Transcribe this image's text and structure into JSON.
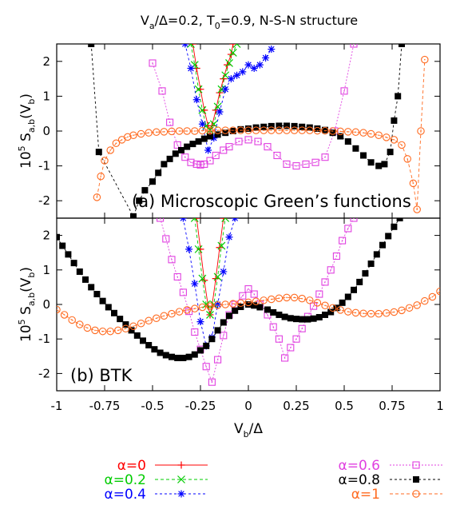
{
  "title": "V_a/Δ=0.2, T_0=0.9, N-S-N structure",
  "title_parts": {
    "v": "V",
    "a_sub": "a",
    "rest1": "/Δ=0.2, T",
    "t_sub": "0",
    "rest2": "=0.9, N-S-N structure"
  },
  "xlabel_parts": {
    "v": "V",
    "b_sub": "b",
    "rest": "/Δ"
  },
  "ylabel_parts": {
    "pre": "10",
    "exp": "5",
    "mid": " S",
    "ab_sub": "a,b",
    "open": "(V",
    "b_sub": "b",
    "close": ")"
  },
  "panel_a_label": "(a) Microscopic Green’s functions",
  "panel_b_label": "(b) BTK",
  "colors": {
    "a0": "#ff0000",
    "a02": "#00cc00",
    "a04": "#0000ff",
    "a06": "#e040e0",
    "a08": "#000000",
    "a1": "#ff6a1f"
  },
  "chart_data": [
    {
      "type": "line",
      "panel": "a",
      "xlim": [
        -1,
        1
      ],
      "ylim": [
        -2.5,
        2.5
      ],
      "xticks": [],
      "yticks": [
        -2,
        -1,
        0,
        1,
        2
      ],
      "series": [
        {
          "name": "α=0",
          "color": "#ff0000",
          "marker": "plus",
          "dash": "none",
          "x": [
            -0.29,
            -0.27,
            -0.25,
            -0.23,
            -0.21,
            -0.2,
            -0.19,
            -0.17,
            -0.15,
            -0.13,
            -0.11,
            -0.09,
            -0.08
          ],
          "y": [
            2.5,
            1.8,
            1.2,
            0.6,
            0.15,
            0.0,
            0.15,
            0.6,
            1.1,
            1.5,
            1.9,
            2.2,
            2.5
          ]
        },
        {
          "name": "α=0.2",
          "color": "#00cc00",
          "marker": "x",
          "dash": "4,3",
          "x": [
            -0.3,
            -0.28,
            -0.26,
            -0.24,
            -0.22,
            -0.2,
            -0.18,
            -0.16,
            -0.14,
            -0.12,
            -0.1,
            -0.08,
            -0.06
          ],
          "y": [
            2.5,
            1.9,
            1.2,
            0.6,
            0.15,
            0.02,
            0.2,
            0.7,
            1.2,
            1.6,
            1.95,
            2.25,
            2.5
          ]
        },
        {
          "name": "α=0.4",
          "color": "#0000ff",
          "marker": "star",
          "dash": "3,3",
          "x": [
            -0.33,
            -0.3,
            -0.27,
            -0.24,
            -0.21,
            -0.18,
            -0.15,
            -0.12,
            -0.09,
            -0.06,
            -0.03,
            0.0,
            0.03,
            0.06,
            0.09,
            0.12
          ],
          "y": [
            2.5,
            1.8,
            0.9,
            0.2,
            -0.55,
            -0.2,
            0.55,
            1.2,
            1.5,
            1.6,
            1.7,
            1.9,
            1.8,
            1.9,
            2.1,
            2.35
          ]
        },
        {
          "name": "α=0.6",
          "color": "#e040e0",
          "marker": "square",
          "dash": "2,2",
          "x": [
            -0.5,
            -0.45,
            -0.41,
            -0.37,
            -0.33,
            -0.3,
            -0.27,
            -0.25,
            -0.23,
            -0.2,
            -0.17,
            -0.13,
            -0.1,
            -0.05,
            0.0,
            0.05,
            0.1,
            0.15,
            0.2,
            0.25,
            0.3,
            0.35,
            0.4,
            0.45,
            0.5,
            0.55
          ],
          "y": [
            1.95,
            1.15,
            0.25,
            -0.4,
            -0.75,
            -0.9,
            -0.95,
            -0.97,
            -0.95,
            -0.85,
            -0.7,
            -0.55,
            -0.45,
            -0.3,
            -0.25,
            -0.3,
            -0.45,
            -0.7,
            -0.95,
            -1.0,
            -0.95,
            -0.9,
            -0.75,
            0.0,
            1.15,
            2.5
          ]
        },
        {
          "name": "α=0.8",
          "color": "#000000",
          "marker": "filledsquare",
          "dash": "3,3",
          "x": [
            -0.82,
            -0.78,
            -0.6,
            -0.57,
            -0.54,
            -0.5,
            -0.47,
            -0.44,
            -0.41,
            -0.38,
            -0.35,
            -0.32,
            -0.29,
            -0.26,
            -0.23,
            -0.2,
            -0.16,
            -0.12,
            -0.08,
            -0.04,
            0.0,
            0.04,
            0.08,
            0.12,
            0.16,
            0.2,
            0.24,
            0.28,
            0.32,
            0.36,
            0.4,
            0.44,
            0.48,
            0.52,
            0.56,
            0.6,
            0.64,
            0.68,
            0.71,
            0.74,
            0.76,
            0.78,
            0.8
          ],
          "y": [
            2.5,
            -0.6,
            -2.45,
            -2.0,
            -1.7,
            -1.45,
            -1.2,
            -0.95,
            -0.8,
            -0.65,
            -0.55,
            -0.45,
            -0.37,
            -0.3,
            -0.22,
            -0.15,
            -0.1,
            -0.05,
            0.0,
            0.05,
            0.07,
            0.1,
            0.12,
            0.14,
            0.15,
            0.15,
            0.14,
            0.12,
            0.1,
            0.07,
            0.03,
            -0.05,
            -0.15,
            -0.3,
            -0.5,
            -0.7,
            -0.9,
            -1.0,
            -0.95,
            -0.6,
            0.3,
            1.0,
            2.5
          ]
        },
        {
          "name": "α=1",
          "color": "#ff6a1f",
          "marker": "circle",
          "dash": "4,3",
          "x": [
            -0.79,
            -0.77,
            -0.75,
            -0.72,
            -0.69,
            -0.66,
            -0.63,
            -0.6,
            -0.56,
            -0.52,
            -0.48,
            -0.44,
            -0.4,
            -0.36,
            -0.32,
            -0.28,
            -0.24,
            -0.2,
            -0.16,
            -0.12,
            -0.08,
            -0.04,
            0.0,
            0.04,
            0.08,
            0.12,
            0.16,
            0.2,
            0.24,
            0.28,
            0.32,
            0.36,
            0.4,
            0.44,
            0.48,
            0.52,
            0.56,
            0.6,
            0.64,
            0.68,
            0.72,
            0.76,
            0.8,
            0.83,
            0.86,
            0.88,
            0.9,
            0.92
          ],
          "y": [
            -1.9,
            -1.3,
            -0.85,
            -0.55,
            -0.35,
            -0.25,
            -0.17,
            -0.12,
            -0.08,
            -0.05,
            -0.03,
            -0.02,
            -0.01,
            0.0,
            0.0,
            0.0,
            0.01,
            0.01,
            0.02,
            0.02,
            0.02,
            0.02,
            0.02,
            0.02,
            0.02,
            0.02,
            0.02,
            0.02,
            0.02,
            0.02,
            0.02,
            0.01,
            0.01,
            0.0,
            -0.01,
            -0.02,
            -0.03,
            -0.05,
            -0.08,
            -0.12,
            -0.18,
            -0.25,
            -0.4,
            -0.8,
            -1.5,
            -2.25,
            0.0,
            2.05
          ]
        }
      ]
    },
    {
      "type": "line",
      "panel": "b",
      "xlim": [
        -1,
        1
      ],
      "ylim": [
        -2.5,
        2.5
      ],
      "xticks": [
        "-1",
        "-0.75",
        "-0.5",
        "-0.25",
        "0",
        "0.25",
        "0.5",
        "0.75",
        "1"
      ],
      "yticks": [
        -2,
        -1,
        0,
        1,
        2
      ],
      "series": [
        {
          "name": "α=0",
          "color": "#ff0000",
          "marker": "plus",
          "dash": "none",
          "x": [
            -0.27,
            -0.25,
            -0.23,
            -0.21,
            -0.2,
            -0.19,
            -0.17,
            -0.15,
            -0.13
          ],
          "y": [
            2.5,
            1.6,
            0.7,
            -0.05,
            -0.3,
            -0.05,
            0.75,
            1.65,
            2.5
          ]
        },
        {
          "name": "α=0.2",
          "color": "#00cc00",
          "marker": "x",
          "dash": "4,3",
          "x": [
            -0.28,
            -0.26,
            -0.24,
            -0.22,
            -0.2,
            -0.18,
            -0.16,
            -0.14,
            -0.12
          ],
          "y": [
            2.5,
            1.6,
            0.75,
            0.0,
            -0.3,
            0.0,
            0.8,
            1.7,
            2.5
          ]
        },
        {
          "name": "α=0.4",
          "color": "#0000ff",
          "marker": "star",
          "dash": "3,3",
          "x": [
            -0.34,
            -0.31,
            -0.28,
            -0.25,
            -0.22,
            -0.19,
            -0.16,
            -0.13,
            -0.1,
            -0.07
          ],
          "y": [
            2.5,
            1.6,
            0.6,
            -0.5,
            -1.2,
            -0.95,
            0.0,
            0.95,
            1.95,
            2.5
          ]
        },
        {
          "name": "α=0.6",
          "color": "#e040e0",
          "marker": "square",
          "dash": "2,2",
          "x": [
            -0.46,
            -0.43,
            -0.4,
            -0.37,
            -0.34,
            -0.31,
            -0.28,
            -0.25,
            -0.22,
            -0.19,
            -0.16,
            -0.13,
            -0.1,
            -0.07,
            -0.03,
            0.0,
            0.03,
            0.06,
            0.1,
            0.13,
            0.16,
            0.19,
            0.22,
            0.25,
            0.28,
            0.31,
            0.34,
            0.37,
            0.4,
            0.43,
            0.46,
            0.49,
            0.52,
            0.55
          ],
          "y": [
            2.5,
            1.9,
            1.3,
            0.8,
            0.35,
            -0.2,
            -0.8,
            -1.3,
            -1.8,
            -2.25,
            -1.6,
            -0.9,
            -0.3,
            0.0,
            0.25,
            0.45,
            0.3,
            0.0,
            -0.3,
            -0.65,
            -1.0,
            -1.55,
            -1.25,
            -1.0,
            -0.7,
            -0.35,
            -0.05,
            0.3,
            0.65,
            1.0,
            1.4,
            1.85,
            2.2,
            2.5
          ]
        },
        {
          "name": "α=0.8",
          "color": "#000000",
          "marker": "filledsquare",
          "dash": "3,3",
          "x": [
            -1.0,
            -0.97,
            -0.94,
            -0.91,
            -0.88,
            -0.85,
            -0.82,
            -0.79,
            -0.76,
            -0.73,
            -0.7,
            -0.67,
            -0.64,
            -0.61,
            -0.58,
            -0.55,
            -0.52,
            -0.49,
            -0.46,
            -0.43,
            -0.4,
            -0.37,
            -0.34,
            -0.31,
            -0.28,
            -0.25,
            -0.22,
            -0.19,
            -0.16,
            -0.13,
            -0.1,
            -0.07,
            -0.04,
            0.0,
            0.03,
            0.06,
            0.1,
            0.13,
            0.16,
            0.19,
            0.22,
            0.25,
            0.28,
            0.31,
            0.34,
            0.37,
            0.4,
            0.43,
            0.46,
            0.49,
            0.52,
            0.55,
            0.58,
            0.61,
            0.64,
            0.67,
            0.7,
            0.73,
            0.76,
            0.79,
            0.82
          ],
          "y": [
            1.95,
            1.7,
            1.45,
            1.2,
            0.95,
            0.72,
            0.5,
            0.3,
            0.1,
            -0.08,
            -0.25,
            -0.42,
            -0.58,
            -0.75,
            -0.9,
            -1.05,
            -1.18,
            -1.3,
            -1.4,
            -1.47,
            -1.52,
            -1.55,
            -1.55,
            -1.52,
            -1.45,
            -1.33,
            -1.2,
            -1.0,
            -0.75,
            -0.52,
            -0.33,
            -0.18,
            -0.07,
            0.0,
            -0.03,
            -0.08,
            -0.15,
            -0.23,
            -0.3,
            -0.36,
            -0.4,
            -0.42,
            -0.43,
            -0.43,
            -0.41,
            -0.37,
            -0.3,
            -0.22,
            -0.1,
            0.05,
            0.22,
            0.42,
            0.65,
            0.9,
            1.18,
            1.45,
            1.72,
            1.98,
            2.25,
            2.5,
            2.75
          ]
        },
        {
          "name": "α=1",
          "color": "#ff6a1f",
          "marker": "circle",
          "dash": "4,3",
          "x": [
            -1.0,
            -0.96,
            -0.92,
            -0.88,
            -0.84,
            -0.8,
            -0.76,
            -0.72,
            -0.68,
            -0.64,
            -0.6,
            -0.56,
            -0.52,
            -0.48,
            -0.44,
            -0.4,
            -0.36,
            -0.32,
            -0.28,
            -0.24,
            -0.2,
            -0.16,
            -0.12,
            -0.08,
            -0.04,
            0.0,
            0.04,
            0.08,
            0.12,
            0.16,
            0.2,
            0.24,
            0.28,
            0.32,
            0.36,
            0.4,
            0.44,
            0.48,
            0.52,
            0.56,
            0.6,
            0.64,
            0.68,
            0.72,
            0.76,
            0.8,
            0.84,
            0.88,
            0.92,
            0.96,
            1.0
          ],
          "y": [
            -0.15,
            -0.3,
            -0.45,
            -0.58,
            -0.68,
            -0.75,
            -0.78,
            -0.78,
            -0.75,
            -0.7,
            -0.63,
            -0.55,
            -0.47,
            -0.4,
            -0.33,
            -0.27,
            -0.21,
            -0.16,
            -0.12,
            -0.08,
            -0.05,
            -0.02,
            0.0,
            0.02,
            0.04,
            0.06,
            0.09,
            0.12,
            0.15,
            0.18,
            0.2,
            0.2,
            0.17,
            0.12,
            0.05,
            -0.03,
            -0.1,
            -0.16,
            -0.21,
            -0.24,
            -0.26,
            -0.27,
            -0.27,
            -0.25,
            -0.22,
            -0.17,
            -0.1,
            -0.02,
            0.1,
            0.22,
            0.38
          ]
        }
      ]
    }
  ],
  "legend": [
    {
      "label": "α=0",
      "color": "#ff0000",
      "marker": "plus",
      "dash": "none"
    },
    {
      "label": "α=0.2",
      "color": "#00cc00",
      "marker": "x",
      "dash": "4,3"
    },
    {
      "label": "α=0.4",
      "color": "#0000ff",
      "marker": "star",
      "dash": "3,3"
    },
    {
      "label": "α=0.6",
      "color": "#e040e0",
      "marker": "square",
      "dash": "2,2"
    },
    {
      "label": "α=0.8",
      "color": "#000000",
      "marker": "filledsquare",
      "dash": "3,3"
    },
    {
      "label": "α=1",
      "color": "#ff6a1f",
      "marker": "circle",
      "dash": "4,3"
    }
  ]
}
